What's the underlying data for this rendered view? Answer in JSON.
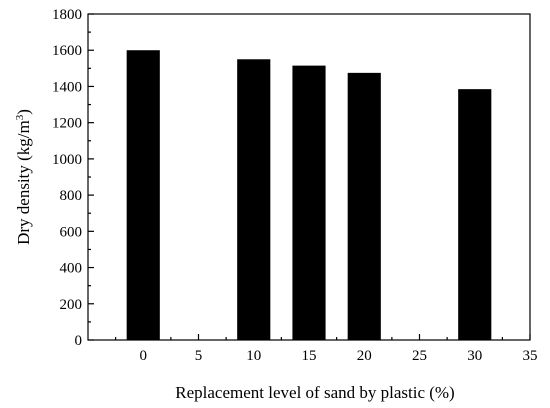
{
  "chart_data": {
    "type": "bar",
    "x": [
      0,
      10,
      15,
      20,
      30
    ],
    "values": [
      1600,
      1550,
      1515,
      1475,
      1385
    ],
    "xlabel": "Replacement level of sand by plastic (%)",
    "ylabel": "Dry density (kg/m",
    "ylabel_sup": "3",
    "ylabel_close": ")",
    "xlim": [
      -5,
      35
    ],
    "ylim": [
      0,
      1800
    ],
    "xticks": [
      0,
      5,
      10,
      15,
      20,
      25,
      30,
      35
    ],
    "yticks": [
      0,
      200,
      400,
      600,
      800,
      1000,
      1200,
      1400,
      1600,
      1800
    ],
    "bar_width": 3,
    "bar_color": "#000000",
    "grid": false,
    "legend": "none"
  }
}
